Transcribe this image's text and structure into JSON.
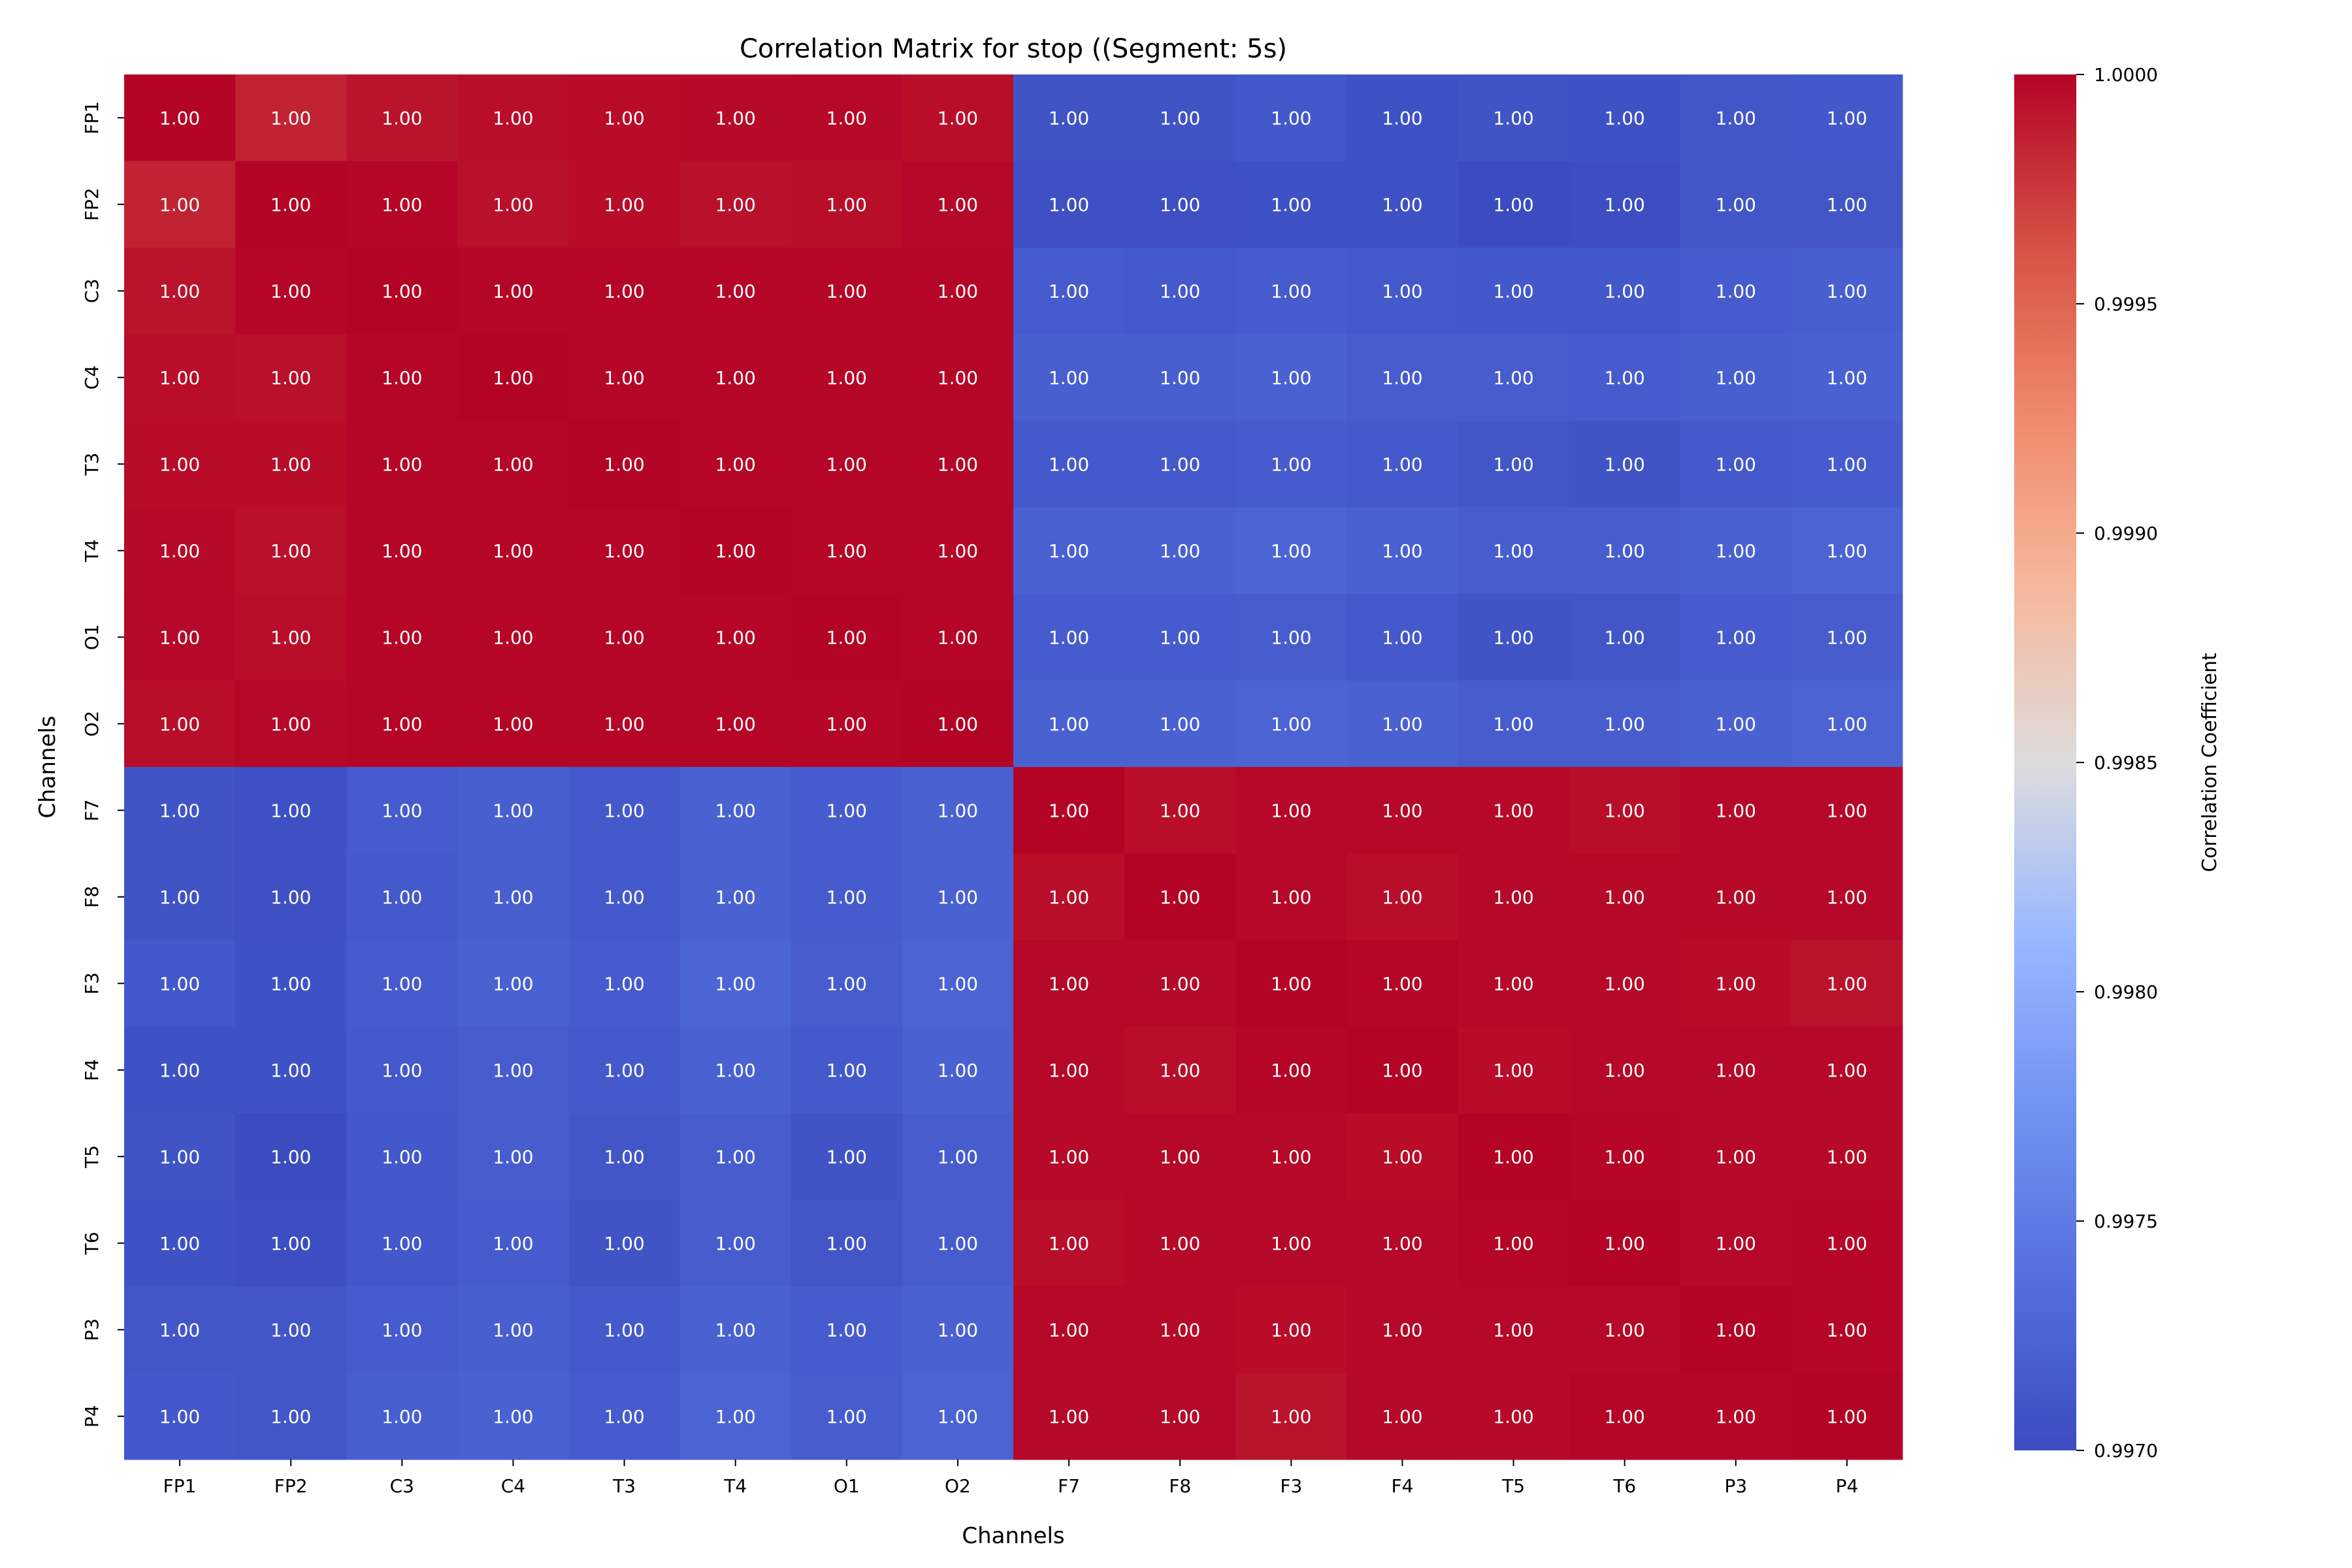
{
  "chart_data": {
    "type": "heatmap",
    "title": "Correlation Matrix for stop ((Segment: 5s)",
    "xlabel": "Channels",
    "ylabel": "Channels",
    "colorbar_label": "Correlation Coefficient",
    "colormap": "coolwarm",
    "vmin": 0.997,
    "vmax": 1.0,
    "colorbar_ticks": [
      "0.9970",
      "0.9975",
      "0.9980",
      "0.9985",
      "0.9990",
      "0.9995",
      "1.0000"
    ],
    "colorbar_tick_values": [
      0.997,
      0.9975,
      0.998,
      0.9985,
      0.999,
      0.9995,
      1.0
    ],
    "annotation_color": "#ffffff",
    "labels": [
      "FP1",
      "FP2",
      "C3",
      "C4",
      "T3",
      "T4",
      "O1",
      "O2",
      "F7",
      "F8",
      "F3",
      "F4",
      "T5",
      "T6",
      "P3",
      "P4"
    ],
    "values": [
      [
        1.0,
        0.99985,
        0.99993,
        0.99995,
        0.99996,
        0.99997,
        0.99998,
        0.99995,
        0.99708,
        0.99708,
        0.99712,
        0.99706,
        0.99708,
        0.99706,
        0.9971,
        0.99712
      ],
      [
        0.99985,
        1.0,
        0.99999,
        0.99994,
        0.99996,
        0.99994,
        0.99995,
        0.99998,
        0.99704,
        0.99704,
        0.99706,
        0.99706,
        0.997,
        0.99702,
        0.9971,
        0.9971
      ],
      [
        0.99993,
        0.99999,
        1.0,
        0.99999,
        0.99999,
        0.99999,
        0.99999,
        0.99999,
        0.99716,
        0.99714,
        0.99716,
        0.99714,
        0.99712,
        0.99712,
        0.99716,
        0.9972
      ],
      [
        0.99995,
        0.99994,
        0.99999,
        1.0,
        0.99999,
        0.99999,
        0.99999,
        0.99999,
        0.9972,
        0.9972,
        0.99722,
        0.99718,
        0.99718,
        0.99716,
        0.9972,
        0.99722
      ],
      [
        0.99996,
        0.99996,
        0.99999,
        0.99999,
        1.0,
        0.99999,
        0.99999,
        0.99999,
        0.99714,
        0.99714,
        0.99716,
        0.99714,
        0.9971,
        0.99708,
        0.99714,
        0.99716
      ],
      [
        0.99997,
        0.99994,
        0.99999,
        0.99999,
        0.99999,
        1.0,
        0.99999,
        0.99999,
        0.99722,
        0.99722,
        0.99726,
        0.99722,
        0.99718,
        0.99718,
        0.99722,
        0.99724
      ],
      [
        0.99998,
        0.99995,
        0.99999,
        0.99999,
        0.99999,
        0.99999,
        1.0,
        0.99999,
        0.99716,
        0.99716,
        0.99718,
        0.99714,
        0.99708,
        0.9971,
        0.99716,
        0.99718
      ],
      [
        0.99995,
        0.99998,
        0.99999,
        0.99999,
        0.99999,
        0.99999,
        0.99999,
        1.0,
        0.99722,
        0.99722,
        0.99724,
        0.99722,
        0.99718,
        0.99718,
        0.99722,
        0.99724
      ],
      [
        0.99708,
        0.99704,
        0.99716,
        0.9972,
        0.99714,
        0.99722,
        0.99716,
        0.99722,
        1.0,
        0.99995,
        0.99998,
        0.99998,
        0.99997,
        0.99995,
        0.99998,
        0.99998
      ],
      [
        0.99708,
        0.99704,
        0.99714,
        0.9972,
        0.99714,
        0.99722,
        0.99716,
        0.99722,
        0.99995,
        1.0,
        0.99998,
        0.99995,
        0.99998,
        0.99997,
        0.99997,
        0.99998
      ],
      [
        0.99712,
        0.99706,
        0.99716,
        0.99722,
        0.99716,
        0.99726,
        0.99718,
        0.99724,
        0.99998,
        0.99998,
        1.0,
        0.99999,
        0.99998,
        0.99998,
        0.99996,
        0.99993
      ],
      [
        0.99706,
        0.99706,
        0.99714,
        0.99718,
        0.99714,
        0.99722,
        0.99714,
        0.99722,
        0.99998,
        0.99995,
        0.99999,
        1.0,
        0.99996,
        0.99998,
        0.99998,
        0.99998
      ],
      [
        0.99708,
        0.997,
        0.99712,
        0.99718,
        0.9971,
        0.99718,
        0.99708,
        0.99718,
        0.99997,
        0.99998,
        0.99998,
        0.99996,
        1.0,
        0.99999,
        0.99998,
        0.99997
      ],
      [
        0.99706,
        0.99702,
        0.99712,
        0.99716,
        0.99708,
        0.99718,
        0.9971,
        0.99718,
        0.99995,
        0.99997,
        0.99998,
        0.99998,
        0.99999,
        1.0,
        0.99998,
        0.99999
      ],
      [
        0.9971,
        0.9971,
        0.99716,
        0.9972,
        0.99714,
        0.99722,
        0.99716,
        0.99722,
        0.99998,
        0.99997,
        0.99996,
        0.99998,
        0.99998,
        0.99998,
        1.0,
        0.99999
      ],
      [
        0.99712,
        0.9971,
        0.9972,
        0.99722,
        0.99716,
        0.99724,
        0.99718,
        0.99724,
        0.99998,
        0.99998,
        0.99993,
        0.99998,
        0.99997,
        0.99999,
        0.99999,
        1.0
      ]
    ]
  }
}
